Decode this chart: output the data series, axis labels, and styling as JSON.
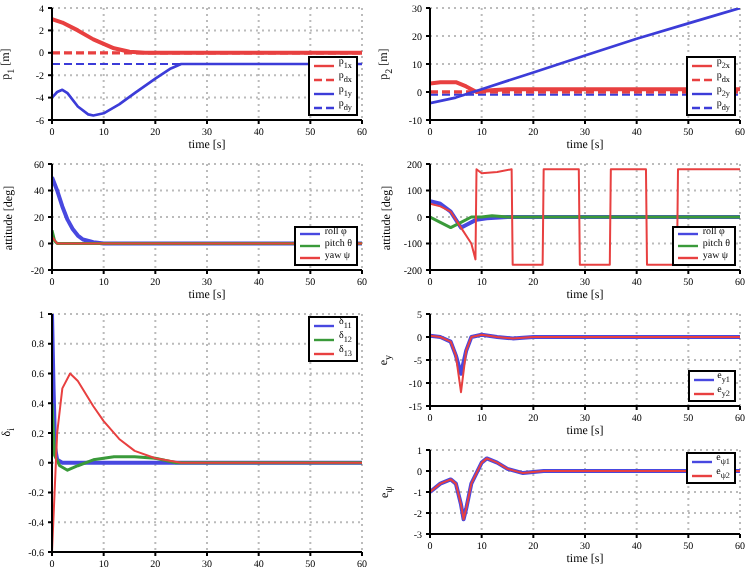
{
  "chart_data": [
    {
      "type": "line",
      "xlabel": "time [s]",
      "ylabel": "p$_{1}$ [m]",
      "xlim": [
        0,
        60
      ],
      "xticks": [
        0,
        10,
        20,
        30,
        40,
        50,
        60
      ],
      "ylim": [
        -6,
        4
      ],
      "yticks": [
        -6,
        -4,
        -2,
        0,
        2,
        4
      ],
      "grid": true,
      "legend": "bottom right",
      "series": [
        {
          "name": "p$_{1x}$",
          "color": "#e84040",
          "line_style": "solid",
          "x": [
            0,
            2,
            5,
            8,
            10,
            12,
            15,
            18,
            60
          ],
          "values": [
            3,
            2.7,
            2,
            1.2,
            0.8,
            0.4,
            0.1,
            0,
            0
          ]
        },
        {
          "name": "p$_{dx}$",
          "color": "#e84040",
          "line_style": "dashed",
          "x": [
            0,
            60
          ],
          "values": [
            0,
            0
          ]
        },
        {
          "name": "p$_{1y}$",
          "color": "#3c3cd8",
          "line_style": "solid",
          "x": [
            0,
            1,
            2,
            3,
            5,
            7,
            8,
            10,
            13,
            16,
            20,
            23,
            25,
            60
          ],
          "values": [
            -4,
            -3.5,
            -3.3,
            -3.6,
            -4.8,
            -5.5,
            -5.6,
            -5.4,
            -4.6,
            -3.6,
            -2.3,
            -1.4,
            -1,
            -1
          ]
        },
        {
          "name": "p$_{dy}$",
          "color": "#3c3cd8",
          "line_style": "dashed",
          "x": [
            0,
            60
          ],
          "values": [
            -1,
            -1
          ]
        }
      ]
    },
    {
      "type": "line",
      "xlabel": "time [s]",
      "ylabel": "p$_{2}$ [m]",
      "xlim": [
        0,
        60
      ],
      "xticks": [
        0,
        10,
        20,
        30,
        40,
        50,
        60
      ],
      "ylim": [
        -10,
        30
      ],
      "yticks": [
        -10,
        0,
        10,
        20,
        30
      ],
      "grid": true,
      "legend": "bottom right",
      "series": [
        {
          "name": "p$_{2x}$",
          "color": "#e84040",
          "line_style": "solid",
          "x": [
            0,
            2,
            5,
            7,
            9,
            11,
            15,
            60
          ],
          "values": [
            3,
            3.5,
            3.5,
            2,
            0,
            0.5,
            1,
            1
          ]
        },
        {
          "name": "p$_{dx}$",
          "color": "#e84040",
          "line_style": "dashed",
          "x": [
            0,
            60
          ],
          "values": [
            0,
            0
          ]
        },
        {
          "name": "p$_{2y}$",
          "color": "#3c3cd8",
          "line_style": "solid",
          "x": [
            0,
            5,
            10,
            20,
            30,
            40,
            50,
            60
          ],
          "values": [
            -4,
            -2,
            1,
            7,
            13,
            19,
            24.5,
            30
          ]
        },
        {
          "name": "p$_{dy}$",
          "color": "#3c3cd8",
          "line_style": "dashed",
          "x": [
            0,
            60
          ],
          "values": [
            -1,
            -1
          ]
        }
      ]
    },
    {
      "type": "line",
      "xlabel": "time [s]",
      "ylabel": "attitude [deg]",
      "xlim": [
        0,
        60
      ],
      "xticks": [
        0,
        10,
        20,
        30,
        40,
        50,
        60
      ],
      "ylim": [
        -20,
        60
      ],
      "yticks": [
        -20,
        0,
        20,
        40,
        60
      ],
      "grid": true,
      "legend": "bottom right",
      "series": [
        {
          "name": "roll φ",
          "color": "#4848e0",
          "x": [
            0,
            1,
            2,
            3,
            4,
            5,
            6,
            8,
            10,
            60
          ],
          "values": [
            50,
            40,
            28,
            18,
            11,
            6,
            3,
            1,
            0,
            0
          ]
        },
        {
          "name": "pitch θ",
          "color": "#3a9a3a",
          "x": [
            0,
            0.5,
            1,
            60
          ],
          "values": [
            10,
            2,
            0,
            0
          ]
        },
        {
          "name": "yaw ψ",
          "color": "#e84040",
          "x": [
            0,
            1,
            60
          ],
          "values": [
            5,
            0,
            0
          ]
        }
      ]
    },
    {
      "type": "line",
      "xlabel": "time [s]",
      "ylabel": "attitude [deg]",
      "xlim": [
        0,
        60
      ],
      "xticks": [
        0,
        10,
        20,
        30,
        40,
        50,
        60
      ],
      "ylim": [
        -200,
        200
      ],
      "yticks": [
        -200,
        -100,
        0,
        100,
        200
      ],
      "grid": true,
      "legend": "bottom right",
      "series": [
        {
          "name": "roll φ",
          "color": "#4848e0",
          "x": [
            0,
            2,
            4,
            6,
            7,
            9,
            11,
            15,
            60
          ],
          "values": [
            60,
            50,
            20,
            -40,
            -30,
            -10,
            -5,
            0,
            0
          ]
        },
        {
          "name": "pitch θ",
          "color": "#3a9a3a",
          "x": [
            0,
            2,
            4,
            6,
            8,
            10,
            12,
            15,
            60
          ],
          "values": [
            0,
            -20,
            -40,
            -20,
            0,
            0,
            5,
            0,
            0
          ]
        },
        {
          "name": "yaw ψ",
          "color": "#e84040",
          "x": [
            0,
            2,
            4,
            6,
            8,
            8.8,
            9,
            10,
            13,
            15.8,
            16,
            21.8,
            22,
            28.8,
            29,
            34.8,
            35,
            41.8,
            42,
            47.8,
            48,
            60
          ],
          "values": [
            50,
            40,
            20,
            -40,
            -100,
            -160,
            180,
            165,
            170,
            180,
            -180,
            -180,
            180,
            180,
            -180,
            -180,
            180,
            180,
            -180,
            -180,
            180,
            180
          ]
        }
      ]
    },
    {
      "type": "line",
      "ylabel": "δ$_{i}$",
      "xlim": [
        0,
        60
      ],
      "xticks": [
        0,
        10,
        20,
        30,
        40,
        50,
        60
      ],
      "ylim": [
        -0.6,
        1
      ],
      "yticks": [
        -0.6,
        -0.4,
        -0.2,
        0,
        0.2,
        0.4,
        0.6,
        0.8,
        1
      ],
      "grid": true,
      "legend": "top right",
      "series": [
        {
          "name": "δ$_{11}$",
          "color": "#4848e0",
          "x": [
            0,
            0.3,
            0.6,
            1,
            2,
            60
          ],
          "values": [
            1,
            0.5,
            0.1,
            0.02,
            0,
            0
          ]
        },
        {
          "name": "δ$_{12}$",
          "color": "#3a9a3a",
          "x": [
            0,
            0.5,
            1.5,
            3,
            5,
            8,
            12,
            16,
            20,
            24,
            60
          ],
          "values": [
            0.4,
            0.05,
            -0.02,
            -0.05,
            -0.02,
            0.02,
            0.04,
            0.04,
            0.03,
            0,
            0
          ]
        },
        {
          "name": "δ$_{13}$",
          "color": "#e84040",
          "x": [
            0,
            0.5,
            1,
            2,
            3.5,
            5,
            8,
            10,
            13,
            16,
            20,
            25,
            60
          ],
          "values": [
            -0.6,
            -0.2,
            0.2,
            0.5,
            0.6,
            0.55,
            0.38,
            0.28,
            0.16,
            0.08,
            0.03,
            0,
            0
          ]
        }
      ]
    },
    {
      "type": "line",
      "xlabel": "time [s]",
      "ylabel": "e$_{y}$",
      "xlim": [
        0,
        60
      ],
      "xticks": [
        0,
        10,
        20,
        30,
        40,
        50,
        60
      ],
      "ylim": [
        -15,
        5
      ],
      "yticks": [
        -15,
        -10,
        -5,
        0,
        5
      ],
      "grid": true,
      "legend": "bottom right",
      "series": [
        {
          "name": "e$_{y1}$",
          "color": "#4848e0",
          "x": [
            0,
            2,
            4,
            5,
            6,
            7,
            8,
            10,
            13,
            16,
            20,
            60
          ],
          "values": [
            0.3,
            0,
            -1,
            -4,
            -8,
            -3,
            0,
            0.5,
            0,
            -0.3,
            0,
            0
          ]
        },
        {
          "name": "e$_{y2}$",
          "color": "#e84040",
          "x": [
            0,
            2,
            4,
            5,
            6,
            7,
            8,
            10,
            13,
            16,
            20,
            60
          ],
          "values": [
            0.3,
            0,
            -1,
            -4,
            -12,
            -3,
            0,
            0.5,
            0,
            -0.3,
            0,
            0
          ]
        }
      ]
    },
    {
      "type": "line",
      "xlabel": "time [s]",
      "ylabel": "e$_{ψ}$",
      "xlim": [
        0,
        60
      ],
      "xticks": [
        0,
        10,
        20,
        30,
        40,
        50,
        60
      ],
      "ylim": [
        -3,
        1
      ],
      "yticks": [
        -3,
        -2,
        -1,
        0,
        1
      ],
      "grid": true,
      "legend": "top right",
      "series": [
        {
          "name": "e$_{ψ1}$",
          "color": "#4848e0",
          "x": [
            0,
            2,
            4,
            5,
            6,
            6.5,
            7,
            8,
            10,
            11,
            13,
            15,
            18,
            22,
            60
          ],
          "values": [
            -1,
            -0.6,
            -0.4,
            -0.6,
            -1.6,
            -2.3,
            -1.8,
            -0.6,
            0.4,
            0.6,
            0.4,
            0.1,
            -0.1,
            0,
            0
          ]
        },
        {
          "name": "e$_{ψ2}$",
          "color": "#e84040",
          "x": [
            0,
            2,
            4,
            5,
            6,
            6.5,
            7,
            8,
            10,
            11,
            13,
            15,
            18,
            22,
            60
          ],
          "values": [
            -1,
            -0.6,
            -0.4,
            -0.6,
            -1.6,
            -2.3,
            -1.8,
            -0.6,
            0.4,
            0.6,
            0.4,
            0.1,
            -0.1,
            0,
            0
          ]
        }
      ]
    }
  ]
}
